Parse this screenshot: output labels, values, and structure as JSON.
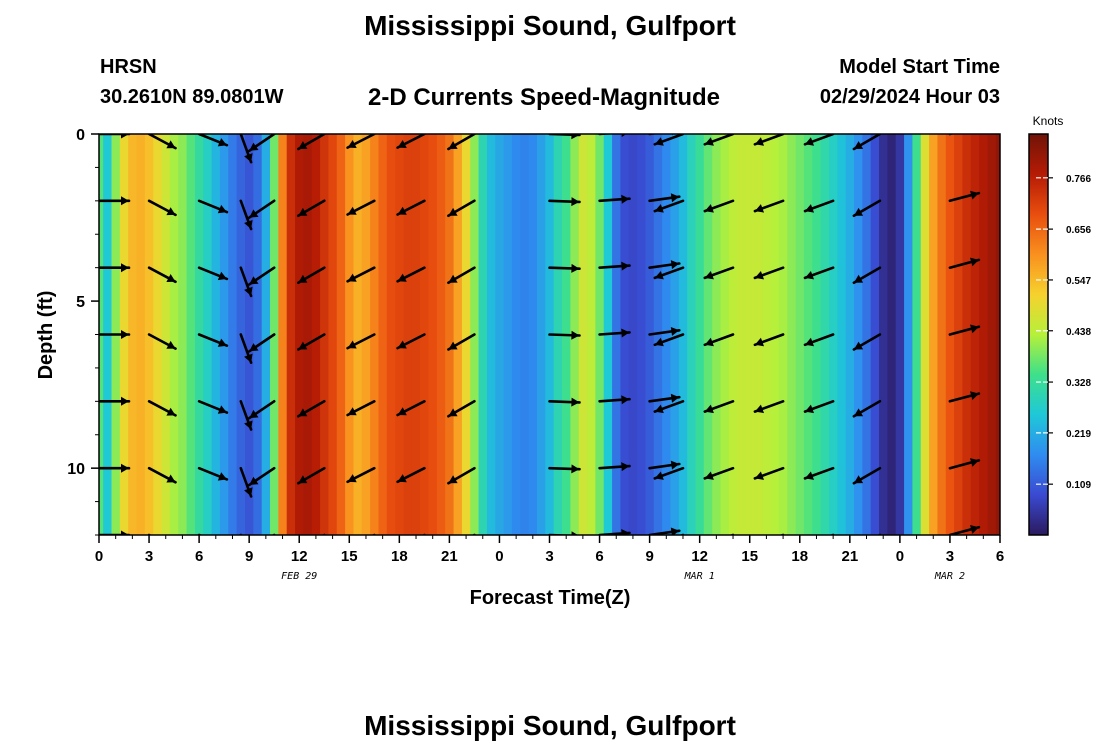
{
  "header": {
    "title": "Mississippi Sound, Gulfport",
    "model": "HRSN",
    "coordinates": "30.2610N  89.0801W",
    "subtitle": "2-D Currents Speed-Magnitude",
    "model_start_label": "Model Start Time",
    "model_start_value": "02/29/2024 Hour 03"
  },
  "footer": {
    "title_repeat": "Mississippi Sound, Gulfport"
  },
  "chart_data": {
    "type": "heatmap",
    "xlabel": "Forecast Time(Z)",
    "ylabel": "Depth (ft)",
    "x_range_hours": [
      0,
      54
    ],
    "y_range_ft": [
      0,
      12
    ],
    "x_ticks": [
      {
        "h": 0,
        "label": "0"
      },
      {
        "h": 3,
        "label": "3"
      },
      {
        "h": 6,
        "label": "6"
      },
      {
        "h": 9,
        "label": "9"
      },
      {
        "h": 12,
        "label": "12"
      },
      {
        "h": 15,
        "label": "15"
      },
      {
        "h": 18,
        "label": "18"
      },
      {
        "h": 21,
        "label": "21"
      },
      {
        "h": 24,
        "label": "0"
      },
      {
        "h": 27,
        "label": "3"
      },
      {
        "h": 30,
        "label": "6"
      },
      {
        "h": 33,
        "label": "9"
      },
      {
        "h": 36,
        "label": "12"
      },
      {
        "h": 39,
        "label": "15"
      },
      {
        "h": 42,
        "label": "18"
      },
      {
        "h": 45,
        "label": "21"
      },
      {
        "h": 48,
        "label": "0"
      },
      {
        "h": 51,
        "label": "3"
      },
      {
        "h": 54,
        "label": "6"
      }
    ],
    "y_ticks": [
      {
        "v": 0,
        "label": "0"
      },
      {
        "v": 5,
        "label": "5"
      },
      {
        "v": 10,
        "label": "10"
      }
    ],
    "date_labels": [
      {
        "h": 12,
        "label": "FEB 29"
      },
      {
        "h": 36,
        "label": "MAR 1"
      },
      {
        "h": 51,
        "label": "MAR 2"
      }
    ],
    "colorbar": {
      "title": "Knots",
      "ticks": [
        "0.109",
        "0.219",
        "0.328",
        "0.438",
        "0.547",
        "0.656",
        "0.766"
      ],
      "tick_values": [
        0.109,
        0.219,
        0.328,
        0.438,
        0.547,
        0.656,
        0.766
      ],
      "range": [
        0,
        0.86
      ],
      "colors": [
        "#2b1a5e",
        "#3a4ad1",
        "#2f8cf0",
        "#1fc8d8",
        "#3ee08a",
        "#b6f03a",
        "#f6d12e",
        "#f9901f",
        "#e84e0e",
        "#b51b05",
        "#701408"
      ]
    },
    "speed_profile_knots": [
      {
        "h": 0.0,
        "s": 0.36
      },
      {
        "h": 0.5,
        "s": 0.26
      },
      {
        "h": 1.0,
        "s": 0.4
      },
      {
        "h": 1.5,
        "s": 0.5
      },
      {
        "h": 2.0,
        "s": 0.55
      },
      {
        "h": 2.5,
        "s": 0.56
      },
      {
        "h": 3.0,
        "s": 0.54
      },
      {
        "h": 3.5,
        "s": 0.5
      },
      {
        "h": 4.0,
        "s": 0.46
      },
      {
        "h": 4.5,
        "s": 0.42
      },
      {
        "h": 5.0,
        "s": 0.4
      },
      {
        "h": 5.5,
        "s": 0.36
      },
      {
        "h": 6.0,
        "s": 0.32
      },
      {
        "h": 6.5,
        "s": 0.28
      },
      {
        "h": 7.0,
        "s": 0.23
      },
      {
        "h": 7.5,
        "s": 0.19
      },
      {
        "h": 8.0,
        "s": 0.15
      },
      {
        "h": 8.5,
        "s": 0.12
      },
      {
        "h": 9.0,
        "s": 0.1
      },
      {
        "h": 9.5,
        "s": 0.13
      },
      {
        "h": 10.0,
        "s": 0.22
      },
      {
        "h": 10.5,
        "s": 0.38
      },
      {
        "h": 11.0,
        "s": 0.62
      },
      {
        "h": 11.5,
        "s": 0.74
      },
      {
        "h": 12.0,
        "s": 0.78
      },
      {
        "h": 12.5,
        "s": 0.79
      },
      {
        "h": 13.0,
        "s": 0.77
      },
      {
        "h": 13.5,
        "s": 0.73
      },
      {
        "h": 14.0,
        "s": 0.7
      },
      {
        "h": 14.5,
        "s": 0.66
      },
      {
        "h": 15.0,
        "s": 0.6
      },
      {
        "h": 15.5,
        "s": 0.56
      },
      {
        "h": 16.0,
        "s": 0.58
      },
      {
        "h": 16.5,
        "s": 0.62
      },
      {
        "h": 17.0,
        "s": 0.66
      },
      {
        "h": 17.5,
        "s": 0.69
      },
      {
        "h": 18.0,
        "s": 0.7
      },
      {
        "h": 18.5,
        "s": 0.71
      },
      {
        "h": 19.0,
        "s": 0.71
      },
      {
        "h": 19.5,
        "s": 0.7
      },
      {
        "h": 20.0,
        "s": 0.69
      },
      {
        "h": 20.5,
        "s": 0.67
      },
      {
        "h": 21.0,
        "s": 0.64
      },
      {
        "h": 21.5,
        "s": 0.58
      },
      {
        "h": 22.0,
        "s": 0.5
      },
      {
        "h": 22.5,
        "s": 0.4
      },
      {
        "h": 23.0,
        "s": 0.3
      },
      {
        "h": 23.5,
        "s": 0.24
      },
      {
        "h": 24.0,
        "s": 0.21
      },
      {
        "h": 24.5,
        "s": 0.19
      },
      {
        "h": 25.0,
        "s": 0.17
      },
      {
        "h": 25.5,
        "s": 0.16
      },
      {
        "h": 26.0,
        "s": 0.17
      },
      {
        "h": 26.5,
        "s": 0.2
      },
      {
        "h": 27.0,
        "s": 0.24
      },
      {
        "h": 27.5,
        "s": 0.3
      },
      {
        "h": 28.0,
        "s": 0.34
      },
      {
        "h": 28.5,
        "s": 0.4
      },
      {
        "h": 29.0,
        "s": 0.46
      },
      {
        "h": 29.5,
        "s": 0.44
      },
      {
        "h": 30.0,
        "s": 0.38
      },
      {
        "h": 30.5,
        "s": 0.26
      },
      {
        "h": 31.0,
        "s": 0.14
      },
      {
        "h": 31.5,
        "s": 0.09
      },
      {
        "h": 32.0,
        "s": 0.08
      },
      {
        "h": 32.5,
        "s": 0.09
      },
      {
        "h": 33.0,
        "s": 0.11
      },
      {
        "h": 33.5,
        "s": 0.14
      },
      {
        "h": 34.0,
        "s": 0.17
      },
      {
        "h": 34.5,
        "s": 0.2
      },
      {
        "h": 35.0,
        "s": 0.24
      },
      {
        "h": 35.5,
        "s": 0.29
      },
      {
        "h": 36.0,
        "s": 0.33
      },
      {
        "h": 36.5,
        "s": 0.37
      },
      {
        "h": 37.0,
        "s": 0.4
      },
      {
        "h": 37.5,
        "s": 0.42
      },
      {
        "h": 38.0,
        "s": 0.44
      },
      {
        "h": 38.5,
        "s": 0.45
      },
      {
        "h": 39.0,
        "s": 0.45
      },
      {
        "h": 39.5,
        "s": 0.45
      },
      {
        "h": 40.0,
        "s": 0.44
      },
      {
        "h": 40.5,
        "s": 0.43
      },
      {
        "h": 41.0,
        "s": 0.42
      },
      {
        "h": 41.5,
        "s": 0.4
      },
      {
        "h": 42.0,
        "s": 0.38
      },
      {
        "h": 42.5,
        "s": 0.36
      },
      {
        "h": 43.0,
        "s": 0.34
      },
      {
        "h": 43.5,
        "s": 0.31
      },
      {
        "h": 44.0,
        "s": 0.28
      },
      {
        "h": 44.5,
        "s": 0.25
      },
      {
        "h": 45.0,
        "s": 0.22
      },
      {
        "h": 45.5,
        "s": 0.18
      },
      {
        "h": 46.0,
        "s": 0.14
      },
      {
        "h": 46.5,
        "s": 0.09
      },
      {
        "h": 47.0,
        "s": 0.04
      },
      {
        "h": 47.5,
        "s": 0.02
      },
      {
        "h": 48.0,
        "s": 0.05
      },
      {
        "h": 48.5,
        "s": 0.18
      },
      {
        "h": 49.0,
        "s": 0.34
      },
      {
        "h": 49.5,
        "s": 0.48
      },
      {
        "h": 50.0,
        "s": 0.58
      },
      {
        "h": 50.5,
        "s": 0.64
      },
      {
        "h": 51.0,
        "s": 0.68
      },
      {
        "h": 51.5,
        "s": 0.71
      },
      {
        "h": 52.0,
        "s": 0.74
      },
      {
        "h": 52.5,
        "s": 0.76
      },
      {
        "h": 53.0,
        "s": 0.78
      },
      {
        "h": 53.5,
        "s": 0.8
      },
      {
        "h": 54.0,
        "s": 0.82
      }
    ],
    "vector_depths_ft": [
      0,
      2,
      4,
      6,
      8,
      10,
      12
    ],
    "vector_columns": [
      {
        "h": 0,
        "deg": 0
      },
      {
        "h": 3,
        "deg": -28
      },
      {
        "h": 6,
        "deg": -22
      },
      {
        "h": 8.5,
        "deg": -70
      },
      {
        "h": 10.5,
        "deg": -146
      },
      {
        "h": 13.5,
        "deg": -150
      },
      {
        "h": 16.5,
        "deg": -153
      },
      {
        "h": 19.5,
        "deg": -153
      },
      {
        "h": 22.5,
        "deg": -150
      },
      {
        "h": 27,
        "deg": -2
      },
      {
        "h": 30,
        "deg": 4
      },
      {
        "h": 33,
        "deg": 8
      },
      {
        "h": 35,
        "deg": -160
      },
      {
        "h": 38,
        "deg": -160
      },
      {
        "h": 41,
        "deg": -160
      },
      {
        "h": 44,
        "deg": -160
      },
      {
        "h": 46.8,
        "deg": -150
      },
      {
        "h": 51,
        "deg": 15
      }
    ]
  }
}
